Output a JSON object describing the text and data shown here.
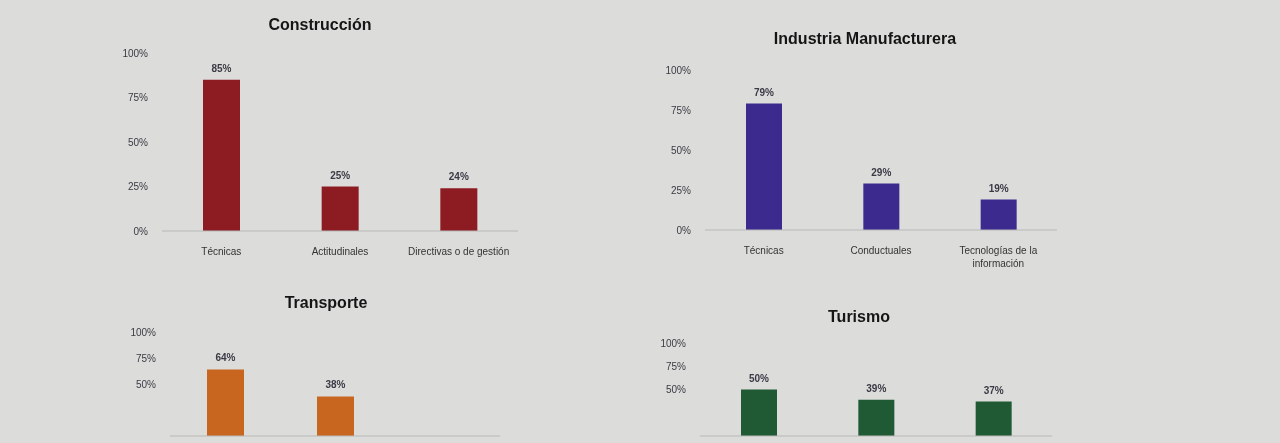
{
  "chart_data": [
    {
      "type": "bar",
      "title": "Construcción",
      "categories": [
        "Técnicas",
        "Actitudinales",
        "Directivas o de gestión"
      ],
      "values": [
        85,
        25,
        24
      ],
      "value_labels": [
        "85%",
        "25%",
        "24%"
      ],
      "color": "#8c1c22",
      "ylim": [
        0,
        100
      ],
      "yticks": [
        {
          "value": 0,
          "label": "0%"
        },
        {
          "value": 25,
          "label": "25%"
        },
        {
          "value": 50,
          "label": "50%"
        },
        {
          "value": 75,
          "label": "75%"
        },
        {
          "value": 100,
          "label": "100%"
        }
      ]
    },
    {
      "type": "bar",
      "title": "Industria Manufacturera",
      "categories": [
        "Técnicas",
        "Conductuales",
        "Tecnologías de la información"
      ],
      "values": [
        79,
        29,
        19
      ],
      "value_labels": [
        "79%",
        "29%",
        "19%"
      ],
      "color": "#3d2a8e",
      "ylim": [
        0,
        100
      ],
      "yticks": [
        {
          "value": 0,
          "label": "0%"
        },
        {
          "value": 25,
          "label": "25%"
        },
        {
          "value": 50,
          "label": "50%"
        },
        {
          "value": 75,
          "label": "75%"
        },
        {
          "value": 100,
          "label": "100%"
        }
      ]
    },
    {
      "type": "bar",
      "title": "Transporte",
      "categories": [
        null,
        null,
        null
      ],
      "values": [
        64,
        38,
        null
      ],
      "value_labels": [
        "64%",
        "38%",
        null
      ],
      "color": "#c8651e",
      "ylim": [
        0,
        100
      ],
      "yticks": [
        {
          "value": 50,
          "label": "50%"
        },
        {
          "value": 75,
          "label": "75%"
        },
        {
          "value": 100,
          "label": "100%"
        }
      ],
      "tick_labels": "y"
    },
    {
      "type": "bar",
      "title": "Turismo",
      "categories": [
        null,
        null,
        null
      ],
      "values": [
        50,
        39,
        37
      ],
      "value_labels": [
        "50%",
        "39%",
        "37%"
      ],
      "color": "#1f5a35",
      "ylim": [
        0,
        100
      ],
      "yticks": [
        {
          "value": 50,
          "label": "50%"
        },
        {
          "value": 75,
          "label": "75%"
        },
        {
          "value": 100,
          "label": "100%"
        }
      ],
      "tick_labels": "y"
    }
  ]
}
